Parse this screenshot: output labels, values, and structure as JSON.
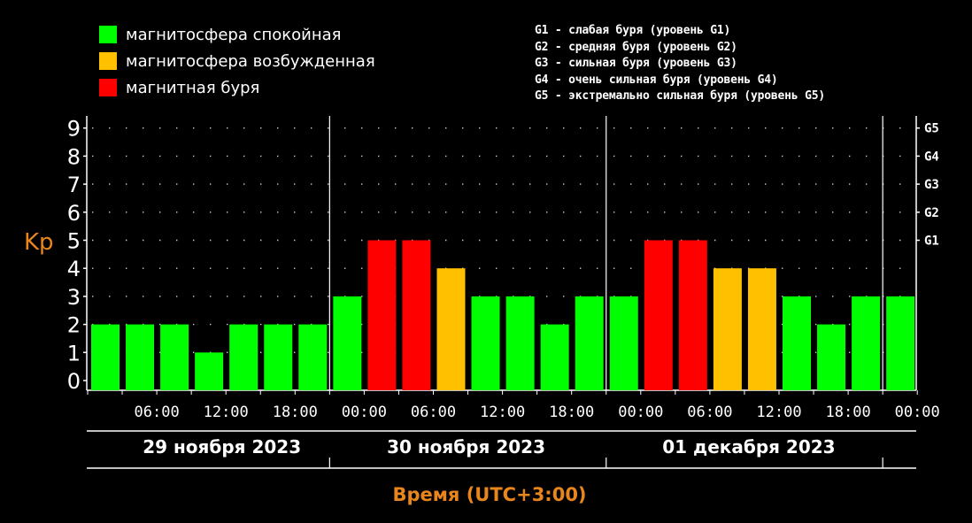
{
  "legend": [
    {
      "label": "магнитосфера спокойная",
      "color": "#00ff00"
    },
    {
      "label": "магнитосфера возбужденная",
      "color": "#ffc000"
    },
    {
      "label": "магнитная буря",
      "color": "#ff0000"
    }
  ],
  "storm_levels": [
    "G1 - слабая буря (уровень G1)",
    "G2 - средняя буря (уровень G2)",
    "G3 - сильная буря (уровень G3)",
    "G4 - очень сильная буря (уровень G4)",
    "G5 - экстремально сильная буря (уровень G5)"
  ],
  "chart_data": {
    "type": "bar",
    "ylabel": "Kp",
    "xlabel": "Время (UTC+3:00)",
    "ylim": [
      0,
      9
    ],
    "y_ticks": [
      "0",
      "1",
      "2",
      "3",
      "4",
      "5",
      "6",
      "7",
      "8",
      "9"
    ],
    "right_axis_labels": [
      {
        "label": "G1",
        "kp": 5
      },
      {
        "label": "G2",
        "kp": 6
      },
      {
        "label": "G3",
        "kp": 7
      },
      {
        "label": "G4",
        "kp": 8
      },
      {
        "label": "G5",
        "kp": 9
      }
    ],
    "x_tick_labels": [
      "06:00",
      "12:00",
      "18:00",
      "00:00",
      "06:00",
      "12:00",
      "18:00",
      "00:00",
      "06:00",
      "12:00",
      "18:00",
      "00:00"
    ],
    "days": [
      "29 ноября 2023",
      "30 ноября 2023",
      "01 декабря 2023"
    ],
    "values": [
      2,
      2,
      2,
      1,
      2,
      2,
      2,
      3,
      5,
      5,
      4,
      3,
      3,
      2,
      3,
      3,
      5,
      5,
      4,
      4,
      3,
      2,
      3,
      3
    ],
    "colors": {
      "calm": "#00ff00",
      "excited": "#ffc000",
      "storm": "#ff0000"
    },
    "grid": true
  }
}
